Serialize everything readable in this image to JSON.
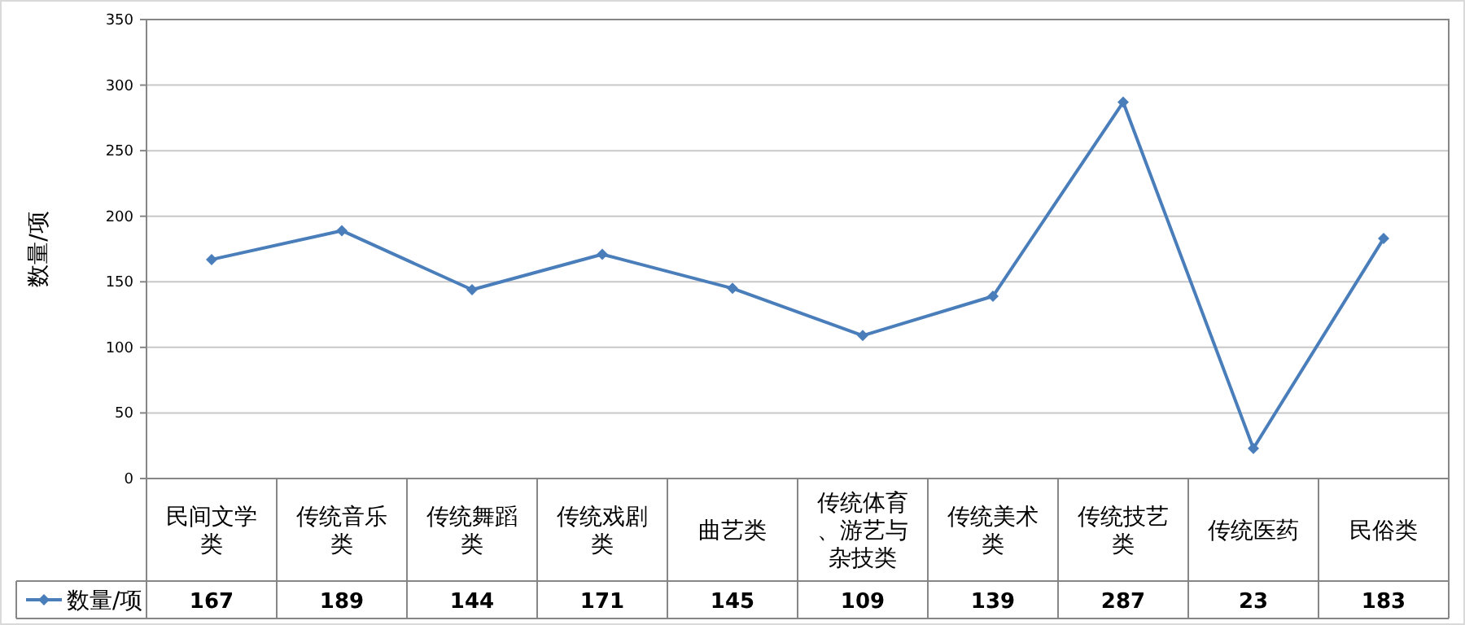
{
  "chart_data": {
    "type": "line",
    "ylabel": "数量/项",
    "categories": [
      "民间文学类",
      "传统音乐类",
      "传统舞蹈类",
      "传统戏剧类",
      "曲艺类",
      "传统体育、游艺与杂技类",
      "传统美术类",
      "传统技艺类",
      "传统医药",
      "民俗类"
    ],
    "series": [
      {
        "name": "数量/项",
        "color": "#4a7ebb",
        "values": [
          167,
          189,
          144,
          171,
          145,
          109,
          139,
          287,
          23,
          183
        ]
      }
    ],
    "ylim": [
      0,
      350
    ],
    "yticks": [
      0,
      50,
      100,
      150,
      200,
      250,
      300,
      350
    ],
    "grid": "y",
    "marker": "diamond",
    "data_labels": true,
    "legend": "bottom left"
  }
}
